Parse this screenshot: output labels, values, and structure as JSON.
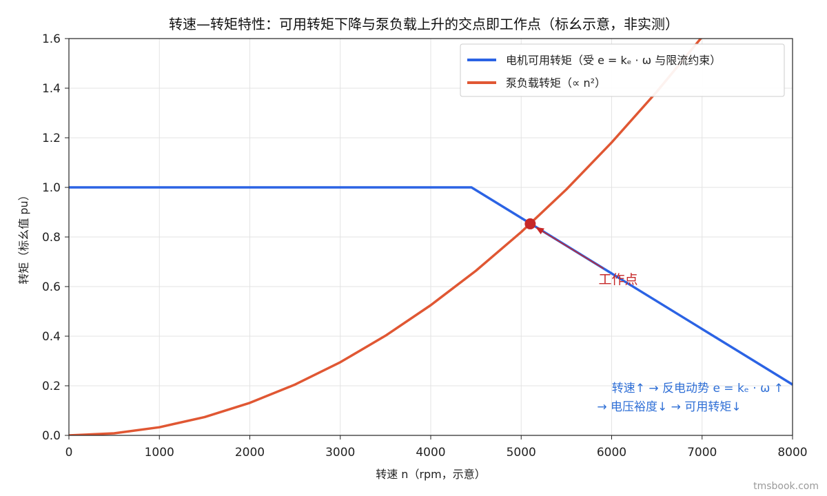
{
  "chart_data": {
    "type": "line",
    "title": "转速—转矩特性：可用转矩下降与泵负载上升的交点即工作点（标幺示意，非实测）",
    "xlabel": "转速 n（rpm，示意）",
    "ylabel": "转矩（标幺值 pu）",
    "xlim": [
      0,
      8000
    ],
    "ylim": [
      0,
      1.6
    ],
    "xticks": [
      "0",
      "1000",
      "2000",
      "3000",
      "4000",
      "5000",
      "6000",
      "7000",
      "8000"
    ],
    "yticks": [
      "0.0",
      "0.2",
      "0.4",
      "0.6",
      "0.8",
      "1.0",
      "1.2",
      "1.4",
      "1.6"
    ],
    "grid": true,
    "legend_position": "top-right",
    "series": [
      {
        "name": "电机可用转矩（受 e = kₑ · ω 与限流约束）",
        "color": "#2b63e4",
        "x": [
          0,
          4450,
          8000
        ],
        "y": [
          1.0,
          1.0,
          0.205
        ]
      },
      {
        "name": "泵负载转矩（∝ n²）",
        "color": "#e05733",
        "x": [
          0,
          500,
          1000,
          1500,
          2000,
          2500,
          3000,
          3500,
          4000,
          4500,
          5000,
          5500,
          6000,
          6500,
          7000,
          7250
        ],
        "y": [
          0,
          0.0082,
          0.0328,
          0.0738,
          0.131,
          0.205,
          0.295,
          0.402,
          0.525,
          0.664,
          0.82,
          0.992,
          1.181,
          1.386,
          1.607,
          1.724
        ]
      }
    ],
    "operating_point": {
      "x": 5100,
      "y": 0.853,
      "color": "#c62828"
    },
    "annotations": {
      "operating_point_label": "工作点",
      "note_line1": "转速↑ → 反电动势 e = kₑ · ω ↑",
      "note_line2": "→ 电压裕度↓ → 可用转矩↓"
    }
  },
  "watermark": "tmsbook.com"
}
